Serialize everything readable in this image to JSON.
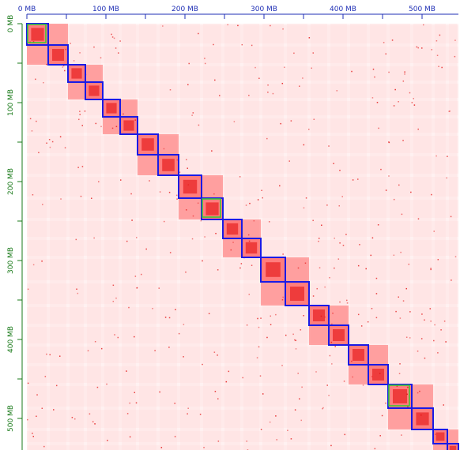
{
  "viewer": {
    "name": "contact-map-viewer",
    "colors": {
      "background": "#ffffff",
      "map_base": "#fff1f1",
      "band": "#ffdede",
      "cross_band": "#ffc9c9",
      "domain_fill": "#ff5a5a",
      "domain_core": "#e21010",
      "scaffold_box": "#1a1ae6",
      "contig_box": "#33cc33",
      "top_axis": "#1f2fb5",
      "left_axis": "#1a7a1a"
    }
  },
  "axis": {
    "unit": "MB",
    "range_mb": [
      0,
      546
    ],
    "top_ticks": [
      {
        "value": 0,
        "label": "0 MB"
      },
      {
        "value": 100,
        "label": "100 MB"
      },
      {
        "value": 200,
        "label": "200 MB"
      },
      {
        "value": 300,
        "label": "300 MB"
      },
      {
        "value": 400,
        "label": "400 MB"
      },
      {
        "value": 500,
        "label": "500 MB"
      }
    ],
    "left_ticks": [
      {
        "value": 0,
        "label": "0 MB"
      },
      {
        "value": 100,
        "label": "100 MB"
      },
      {
        "value": 200,
        "label": "200 MB"
      },
      {
        "value": 300,
        "label": "300 MB"
      },
      {
        "value": 400,
        "label": "400 MB"
      },
      {
        "value": 500,
        "label": "500 MB"
      }
    ],
    "minor_tick_step_mb": 50
  },
  "scaffolds": [
    {
      "start_mb": 0,
      "end_mb": 27
    },
    {
      "start_mb": 27,
      "end_mb": 52
    },
    {
      "start_mb": 52,
      "end_mb": 74
    },
    {
      "start_mb": 74,
      "end_mb": 96
    },
    {
      "start_mb": 96,
      "end_mb": 118
    },
    {
      "start_mb": 118,
      "end_mb": 140
    },
    {
      "start_mb": 140,
      "end_mb": 166
    },
    {
      "start_mb": 166,
      "end_mb": 192
    },
    {
      "start_mb": 192,
      "end_mb": 221
    },
    {
      "start_mb": 221,
      "end_mb": 248
    },
    {
      "start_mb": 248,
      "end_mb": 272
    },
    {
      "start_mb": 272,
      "end_mb": 296
    },
    {
      "start_mb": 296,
      "end_mb": 327
    },
    {
      "start_mb": 327,
      "end_mb": 357
    },
    {
      "start_mb": 357,
      "end_mb": 382
    },
    {
      "start_mb": 382,
      "end_mb": 407
    },
    {
      "start_mb": 407,
      "end_mb": 432
    },
    {
      "start_mb": 432,
      "end_mb": 457
    },
    {
      "start_mb": 457,
      "end_mb": 487
    },
    {
      "start_mb": 487,
      "end_mb": 514
    },
    {
      "start_mb": 514,
      "end_mb": 532
    },
    {
      "start_mb": 532,
      "end_mb": 546
    }
  ],
  "contigs": [
    {
      "start_mb": 1,
      "end_mb": 24
    },
    {
      "start_mb": 222,
      "end_mb": 245
    },
    {
      "start_mb": 458,
      "end_mb": 484
    }
  ]
}
